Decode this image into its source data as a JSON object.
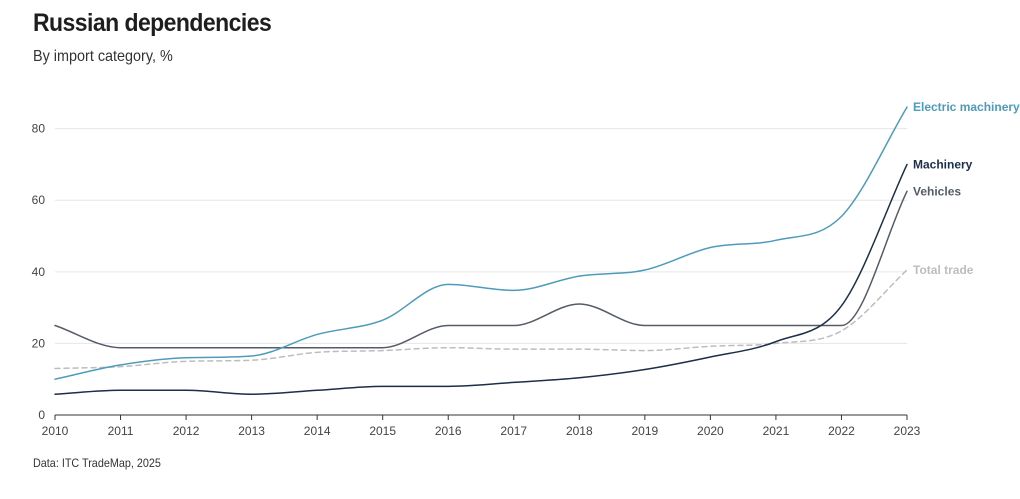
{
  "header": {
    "title": "Russian dependencies",
    "subtitle": "By import category, %"
  },
  "footer": {
    "source": "Data: ITC TradeMap, 2025"
  },
  "chart_data": {
    "type": "line",
    "x": [
      2010,
      2011,
      2012,
      2013,
      2014,
      2015,
      2016,
      2017,
      2018,
      2019,
      2020,
      2021,
      2022,
      2023
    ],
    "x_tick_labels": [
      "2010",
      "2011",
      "2012",
      "2013",
      "2014",
      "2015",
      "2016",
      "2017",
      "2018",
      "2019",
      "2020",
      "2021",
      "2022",
      "2023"
    ],
    "y_ticks": [
      0,
      20,
      40,
      60,
      80
    ],
    "y_tick_labels": [
      "0",
      "20",
      "40",
      "60",
      "80"
    ],
    "ylim": [
      0,
      88
    ],
    "grid": true,
    "legend": "direct labels at line ends",
    "series": [
      {
        "name": "Electric machinery",
        "color": "#4e9bbb",
        "dashed": false,
        "label_bold": true,
        "values": [
          10,
          14,
          16,
          16.5,
          22.5,
          26.5,
          36.5,
          34.8,
          38.8,
          40.5,
          46.8,
          48.8,
          55.5,
          86
        ]
      },
      {
        "name": "Machinery",
        "color": "#1d2e47",
        "dashed": false,
        "label_bold": true,
        "values": [
          5.8,
          6.9,
          6.9,
          5.8,
          6.9,
          8,
          8,
          9.1,
          10.4,
          12.7,
          16.2,
          20.5,
          30.5,
          70
        ]
      },
      {
        "name": "Vehicles",
        "color": "#555c66",
        "dashed": false,
        "label_bold": true,
        "values": [
          25,
          18.8,
          18.8,
          18.8,
          18.8,
          18.8,
          25,
          25,
          31,
          25,
          25,
          25,
          25,
          62.5
        ]
      },
      {
        "name": "Total trade",
        "color": "#bdbdbd",
        "dashed": true,
        "label_bold": true,
        "values": [
          13,
          13.5,
          15,
          15.3,
          17.5,
          18,
          18.8,
          18.4,
          18.4,
          18,
          19.2,
          20,
          23.5,
          40.5
        ]
      }
    ]
  }
}
